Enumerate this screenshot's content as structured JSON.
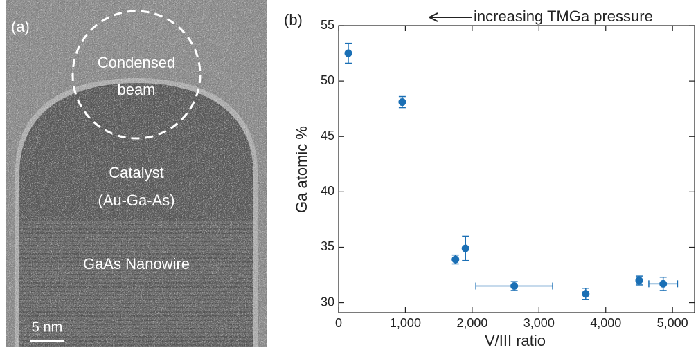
{
  "panel_a": {
    "label": "(a)",
    "beam": [
      "Condensed",
      "beam"
    ],
    "catalyst": [
      "Catalyst",
      "(Au-Ga-As)"
    ],
    "nanowire": "GaAs Nanowire",
    "scale_bar": "5 nm"
  },
  "chart_data": {
    "type": "scatter",
    "panel_label": "(b)",
    "annotation": "increasing TMGa pressure",
    "xlabel": "V/III ratio",
    "ylabel": "Ga atomic %",
    "x": [
      145,
      953,
      1750,
      1900,
      2630,
      3700,
      4500,
      4860
    ],
    "x_errors": [
      null,
      null,
      null,
      null,
      575,
      null,
      null,
      215
    ],
    "values": [
      52.5,
      48.1,
      33.9,
      34.9,
      31.5,
      30.8,
      32.0,
      31.7
    ],
    "errors": [
      0.9,
      0.5,
      0.4,
      1.1,
      0.4,
      0.5,
      0.4,
      0.6
    ],
    "color": "#1a6fb5",
    "xlim": [
      0,
      5330
    ],
    "ylim": [
      29.1,
      55
    ],
    "xticks": [
      0,
      {
        "value": 1000,
        "label": "1,000"
      },
      {
        "value": 2000,
        "label": "2,000"
      },
      {
        "value": 3000,
        "label": "3,000"
      },
      {
        "value": 4000,
        "label": "4,000"
      },
      {
        "value": 5000,
        "label": "5,000"
      }
    ],
    "yticks": [
      30,
      35,
      40,
      45,
      50,
      55
    ]
  }
}
